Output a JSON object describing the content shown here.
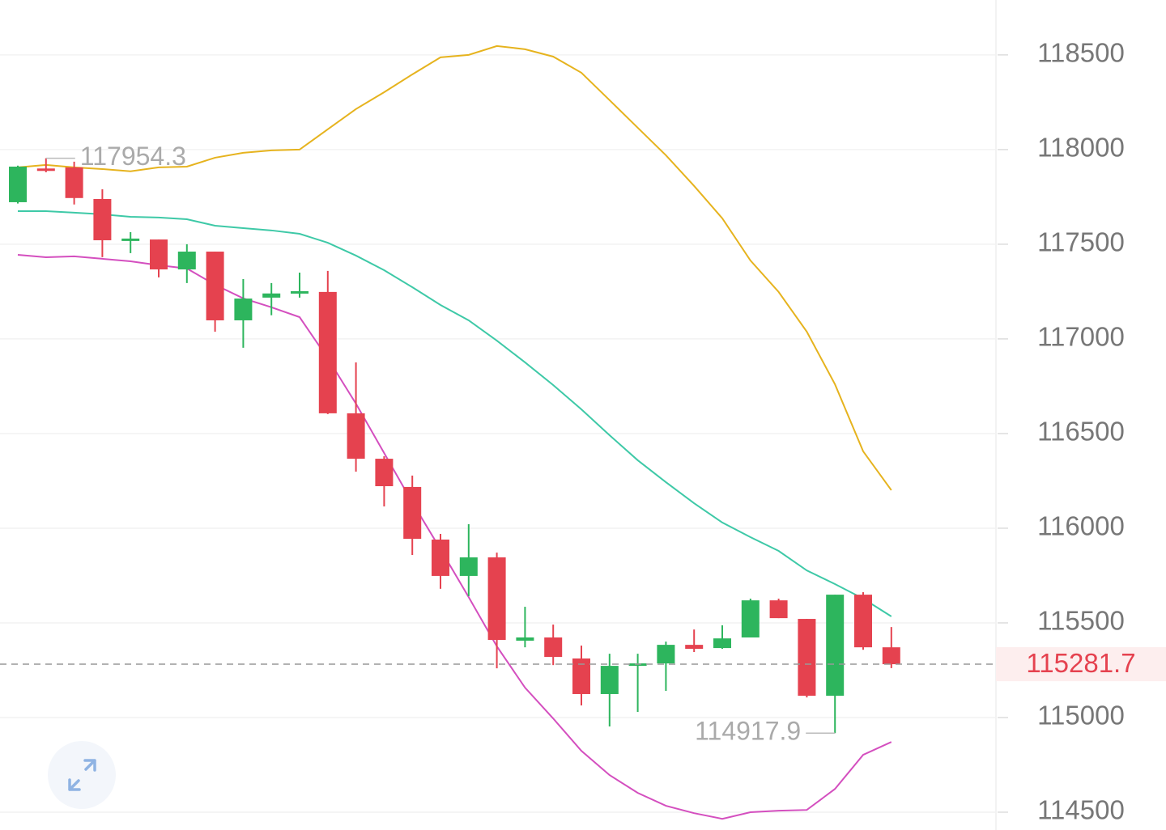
{
  "chart_data": {
    "type": "candlestick",
    "up_color": "#2db55d",
    "down_color": "#e5424f",
    "open": [
      117722,
      117900,
      117906,
      117739,
      117520,
      117525,
      117367,
      117461,
      117098,
      117218,
      117240,
      117248,
      116607,
      116367,
      116218,
      115940,
      115748,
      115846,
      115406,
      115423,
      115312,
      115124,
      115277,
      115286,
      115384,
      115367,
      115423,
      115619,
      115521,
      115115,
      115649,
      115371
    ],
    "high": [
      117915,
      117954.3,
      117936,
      117790,
      117564,
      117525,
      117500,
      117461,
      117316,
      117295,
      117350,
      117359,
      116876,
      116380,
      116278,
      115970,
      116021,
      115871,
      115585,
      115491,
      115380,
      115337,
      115337,
      115401,
      115465,
      115487,
      115628,
      115628,
      115521,
      115649,
      115662,
      115478
    ],
    "low": [
      117715,
      117880,
      117710,
      117432,
      117453,
      117325,
      117295,
      117038,
      116953,
      117125,
      117218,
      116603,
      116299,
      116115,
      115859,
      115680,
      115641,
      115260,
      115371,
      115277,
      115064,
      114953,
      115030,
      115141,
      115346,
      115363,
      115423,
      115525,
      115106,
      114917.9,
      115358,
      115261
    ],
    "close": [
      117910,
      117895,
      117744,
      117521,
      117530,
      117367,
      117461,
      117098,
      117213,
      117240,
      117252,
      116607,
      116367,
      116222,
      115944,
      115748,
      115846,
      115410,
      115423,
      115320,
      115124,
      115273,
      115286,
      115384,
      115363,
      115418,
      115619,
      115525,
      115115,
      115649,
      115371,
      115281.7
    ],
    "bands": [
      {
        "color": "#e6b31e",
        "values": [
          117906,
          117919,
          117906,
          117897,
          117885,
          117906,
          117910,
          117957,
          117983,
          117996,
          118000,
          118107,
          118214,
          118303,
          118397,
          118487,
          118500,
          118547,
          118530,
          118491,
          118406,
          118261,
          118115,
          117970,
          117808,
          117637,
          117414,
          117248,
          117038,
          116760,
          116406,
          116201
        ]
      },
      {
        "color": "#3ec9a7",
        "values": [
          117675,
          117675,
          117667,
          117658,
          117645,
          117641,
          117632,
          117598,
          117585,
          117573,
          117555,
          117508,
          117440,
          117363,
          117273,
          117179,
          117098,
          116991,
          116876,
          116756,
          116628,
          116491,
          116359,
          116243,
          116132,
          116030,
          115953,
          115880,
          115777,
          115705,
          115628,
          115534
        ]
      },
      {
        "color": "#d44fbf",
        "values": [
          117444,
          117431,
          117436,
          117423,
          117410,
          117389,
          117372,
          117286,
          117214,
          117167,
          117115,
          116897,
          116658,
          116397,
          116136,
          115889,
          115636,
          115376,
          115158,
          114995,
          114824,
          114696,
          114602,
          114534,
          114495,
          114465,
          114500,
          114508,
          114512,
          114623,
          114803,
          114871
        ]
      }
    ],
    "ylim": [
      114406,
      118790
    ],
    "yticks": [
      114500,
      115000,
      115500,
      116000,
      116500,
      117000,
      117500,
      118000,
      118500
    ],
    "grid": true
  }
}
